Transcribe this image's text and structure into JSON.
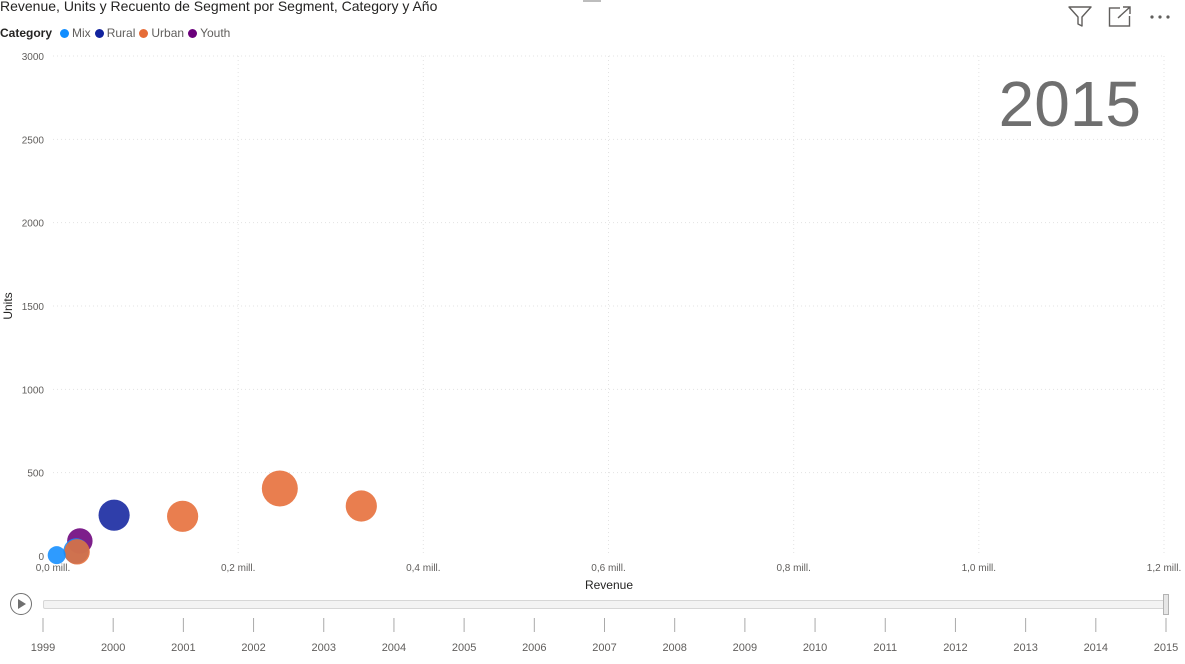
{
  "title": "Revenue, Units y Recuento de Segment por Segment, Category y Año",
  "toolbar": {
    "filter_icon": "filter-icon",
    "focus_icon": "focus-mode-icon",
    "more_icon": "more-options-icon"
  },
  "legend": {
    "title": "Category",
    "items": [
      {
        "label": "Mix",
        "color": "#118DFF"
      },
      {
        "label": "Rural",
        "color": "#12239E"
      },
      {
        "label": "Urban",
        "color": "#E66C37"
      },
      {
        "label": "Youth",
        "color": "#6B007B"
      }
    ]
  },
  "play_axis": {
    "current_year": "2015",
    "years": [
      "1999",
      "2000",
      "2001",
      "2002",
      "2003",
      "2004",
      "2005",
      "2006",
      "2007",
      "2008",
      "2009",
      "2010",
      "2011",
      "2012",
      "2013",
      "2014",
      "2015"
    ]
  },
  "chart_data": {
    "type": "scatter",
    "xlabel": "Revenue",
    "ylabel": "Units",
    "xlim": [
      0,
      1200000
    ],
    "ylim": [
      0,
      3000
    ],
    "x_ticks": [
      "0,0 mill.",
      "0,2 mill.",
      "0,4 mill.",
      "0,6 mill.",
      "0,8 mill.",
      "1,0 mill.",
      "1,2 mill."
    ],
    "y_ticks": [
      "0",
      "500",
      "1000",
      "1500",
      "2000",
      "2500",
      "3000"
    ],
    "grid": true,
    "size_measure": "Recuento de Segment",
    "points": [
      {
        "category": "Urban",
        "x": 245000,
        "y": 405,
        "size": 4
      },
      {
        "category": "Urban",
        "x": 333000,
        "y": 300,
        "size": 3
      },
      {
        "category": "Urban",
        "x": 140000,
        "y": 238,
        "size": 3
      },
      {
        "category": "Rural",
        "x": 66000,
        "y": 245,
        "size": 3
      },
      {
        "category": "Youth",
        "x": 29000,
        "y": 90,
        "size": 2
      },
      {
        "category": "Mix",
        "x": 25000,
        "y": 30,
        "size": 2
      },
      {
        "category": "Urban",
        "x": 26000,
        "y": 25,
        "size": 2
      },
      {
        "category": "Mix",
        "x": 4000,
        "y": 5,
        "size": 1
      }
    ]
  }
}
